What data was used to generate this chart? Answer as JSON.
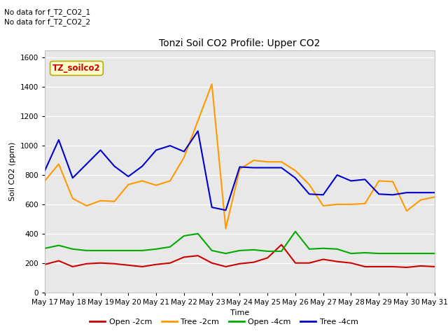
{
  "title": "Tonzi Soil CO2 Profile: Upper CO2",
  "xlabel": "Time",
  "ylabel": "Soil CO2 (ppm)",
  "ylim": [
    0,
    1650
  ],
  "yticks": [
    0,
    200,
    400,
    600,
    800,
    1000,
    1200,
    1400,
    1600
  ],
  "bg_color": "#e8e8e8",
  "no_data_text": [
    "No data for f_T2_CO2_1",
    "No data for f_T2_CO2_2"
  ],
  "legend_label_box": "TZ_soilco2",
  "xtick_labels": [
    "May 17",
    "May 18",
    "May 19",
    "May 20",
    "May 21",
    "May 22",
    "May 23",
    "May 24",
    "May 25",
    "May 26",
    "May 27",
    "May 28",
    "May 29",
    "May 30",
    "May 31"
  ],
  "series": {
    "open_2cm": {
      "color": "#cc0000",
      "label": "Open -2cm",
      "x": [
        0,
        0.5,
        1,
        1.5,
        2,
        2.5,
        3,
        3.5,
        4,
        4.5,
        5,
        5.5,
        6,
        6.5,
        7,
        7.5,
        8,
        8.5,
        9,
        9.5,
        10,
        10.5,
        11,
        11.5,
        12,
        12.5,
        13,
        13.5,
        14
      ],
      "y": [
        190,
        215,
        175,
        195,
        200,
        195,
        185,
        175,
        190,
        200,
        240,
        250,
        200,
        175,
        195,
        205,
        235,
        325,
        200,
        200,
        225,
        210,
        200,
        175,
        175,
        175,
        170,
        180,
        175
      ]
    },
    "tree_2cm": {
      "color": "#ff9900",
      "label": "Tree -2cm",
      "x": [
        0,
        0.5,
        1,
        1.5,
        2,
        2.5,
        3,
        3.5,
        4,
        4.5,
        5,
        5.5,
        6,
        6.5,
        7,
        7.5,
        8,
        8.5,
        9,
        9.5,
        10,
        10.5,
        11,
        11.5,
        12,
        12.5,
        13,
        13.5,
        14
      ],
      "y": [
        760,
        875,
        640,
        590,
        625,
        620,
        735,
        760,
        730,
        760,
        920,
        1170,
        1420,
        435,
        840,
        900,
        890,
        890,
        830,
        735,
        590,
        600,
        600,
        605,
        760,
        755,
        555,
        630,
        650
      ]
    },
    "open_4cm": {
      "color": "#00aa00",
      "label": "Open -4cm",
      "x": [
        0,
        0.5,
        1,
        1.5,
        2,
        2.5,
        3,
        3.5,
        4,
        4.5,
        5,
        5.5,
        6,
        6.5,
        7,
        7.5,
        8,
        8.5,
        9,
        9.5,
        10,
        10.5,
        11,
        11.5,
        12,
        12.5,
        13,
        13.5,
        14
      ],
      "y": [
        300,
        320,
        295,
        285,
        285,
        285,
        285,
        285,
        295,
        310,
        385,
        400,
        285,
        265,
        285,
        290,
        280,
        280,
        415,
        295,
        300,
        295,
        265,
        270,
        265,
        265,
        265,
        265,
        265
      ]
    },
    "tree_4cm": {
      "color": "#0000cc",
      "label": "Tree -4cm",
      "x": [
        0,
        0.5,
        1,
        1.5,
        2,
        2.5,
        3,
        3.5,
        4,
        4.5,
        5,
        5.5,
        6,
        6.5,
        7,
        7.5,
        8,
        8.5,
        9,
        9.5,
        10,
        10.5,
        11,
        11.5,
        12,
        12.5,
        13,
        13.5,
        14
      ],
      "y": [
        830,
        1040,
        780,
        875,
        970,
        860,
        790,
        860,
        970,
        1000,
        960,
        1100,
        580,
        560,
        855,
        850,
        850,
        850,
        780,
        670,
        665,
        800,
        760,
        770,
        670,
        665,
        680,
        680,
        680
      ]
    }
  }
}
